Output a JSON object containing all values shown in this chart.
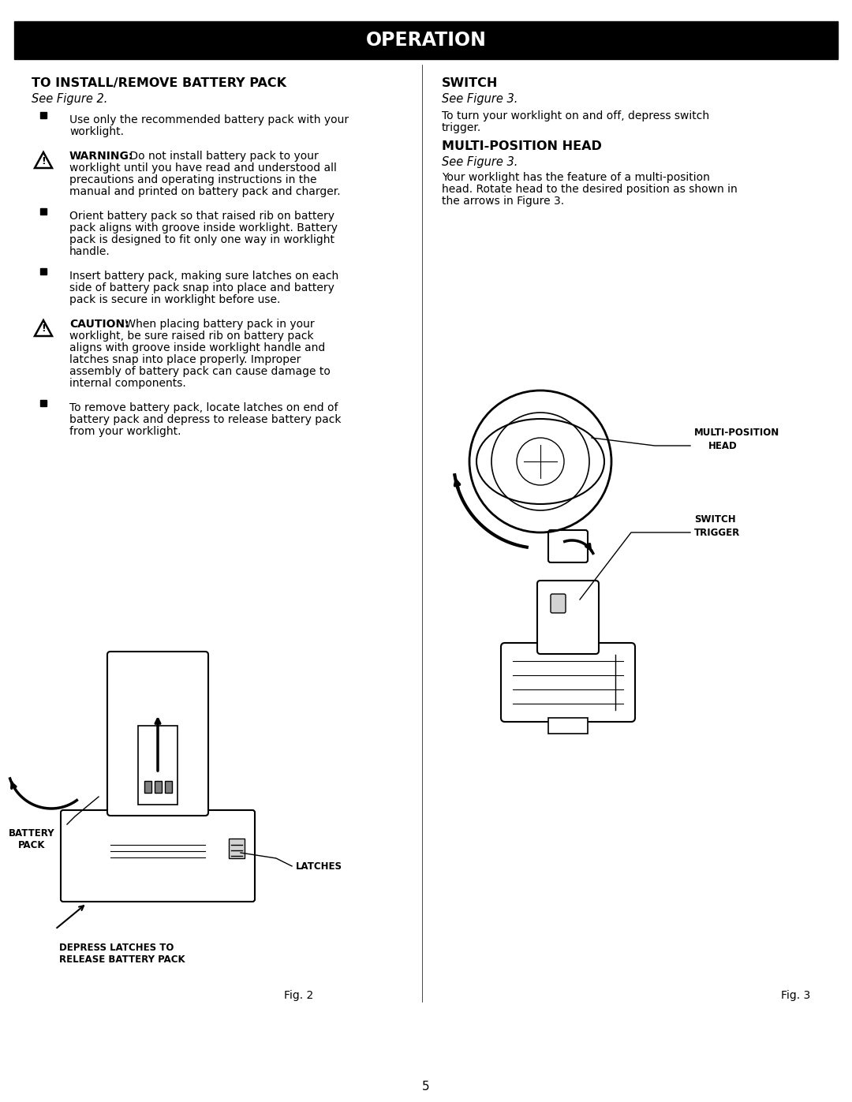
{
  "bg_color": "#ffffff",
  "header_bg": "#000000",
  "header_text": "OPERATION",
  "header_text_color": "#ffffff",
  "page_number": "5",
  "left_col": {
    "title": "TO INSTALL/REMOVE BATTERY PACK",
    "see_fig": "See Figure 2.",
    "bullets": [
      {
        "type": "square",
        "text": "Use only the recommended battery pack with your worklight."
      },
      {
        "type": "warning",
        "bold_text": "WARNING:",
        "text": " Do not install battery pack to your worklight until you have read and understood all precautions and operating instructions in the manual and printed on battery pack and charger."
      },
      {
        "type": "square",
        "text": "Orient battery pack so that raised rib on battery pack aligns with groove inside worklight. Battery pack is designed to fit only one way in worklight handle."
      },
      {
        "type": "square",
        "text": "Insert battery pack, making sure latches on each side of battery pack snap into place and battery pack is secure in worklight before use."
      },
      {
        "type": "caution",
        "bold_text": "CAUTION:",
        "text": " When placing battery pack in your worklight, be sure raised rib on battery pack aligns with groove inside worklight handle and latches snap into place properly. Improper assembly of battery pack can cause damage to internal components."
      },
      {
        "type": "square",
        "text": "To remove battery pack, locate latches on end of battery pack and depress to release battery pack from your worklight."
      }
    ],
    "fig_label": "Fig. 2",
    "fig_labels_on_image": [
      "BATTERY\nPACK",
      "LATCHES",
      "DEPRESS LATCHES TO\nRELEASE BATTERY PACK"
    ]
  },
  "right_col": {
    "switch_title": "SWITCH",
    "switch_see_fig": "See Figure 3.",
    "switch_text": "To turn your worklight on and off, depress switch trigger.",
    "mph_title": "MULTI-POSITION HEAD",
    "mph_see_fig": "See Figure 3.",
    "mph_text": "Your worklight has the feature of a multi-position head. Rotate head to the desired position as shown in the arrows in Figure 3.",
    "fig_label": "Fig. 3",
    "fig_labels_on_image": [
      "MULTI-POSITION\nHEAD",
      "SWITCH\nTRIGGER"
    ]
  }
}
